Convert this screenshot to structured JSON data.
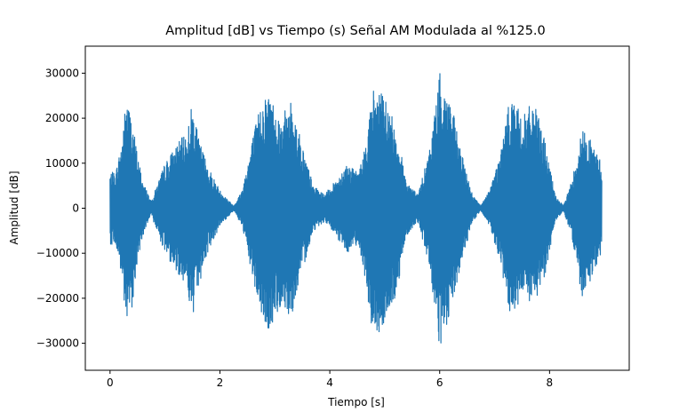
{
  "chart_data": {
    "type": "line",
    "title": "Amplitud [dB] vs Tiempo (s) Señal AM Modulada al  %125.0",
    "xlabel": "Tiempo [s]",
    "ylabel": "Amplitud [dB]",
    "xlim": [
      -0.45,
      9.45
    ],
    "ylim": [
      -36000,
      36000
    ],
    "x_ticks": [
      0,
      2,
      4,
      6,
      8
    ],
    "x_tick_labels": [
      "0",
      "2",
      "4",
      "6",
      "8"
    ],
    "y_ticks": [
      -30000,
      -20000,
      -10000,
      0,
      10000,
      20000,
      30000
    ],
    "y_tick_labels": [
      "−30000",
      "−20000",
      "−10000",
      "0",
      "10000",
      "20000",
      "30000"
    ],
    "grid": false,
    "legend": "none",
    "colors": {
      "series": "#1f77b4",
      "axes": "#000000",
      "background": "#ffffff"
    },
    "series": [
      {
        "style": "dense oscillating AM waveform filling its envelope",
        "x_range": [
          0,
          8.95
        ],
        "envelope_x": [
          0,
          0.1,
          0.2,
          0.3,
          0.4,
          0.5,
          0.6,
          0.75,
          0.85,
          1.0,
          1.2,
          1.4,
          1.5,
          1.6,
          1.8,
          2.0,
          2.25,
          2.4,
          2.6,
          2.75,
          2.9,
          3.1,
          3.3,
          3.5,
          3.7,
          3.9,
          4.1,
          4.3,
          4.5,
          4.6,
          4.8,
          5.0,
          5.2,
          5.4,
          5.6,
          5.8,
          6.0,
          6.2,
          6.4,
          6.6,
          6.75,
          6.9,
          7.1,
          7.3,
          7.5,
          7.7,
          7.9,
          8.1,
          8.25,
          8.4,
          8.6,
          8.8,
          8.95
        ],
        "envelope_upper": [
          8000,
          8000,
          14000,
          25000,
          20000,
          12000,
          6000,
          1500,
          5000,
          10000,
          14000,
          17000,
          24000,
          16000,
          9000,
          4000,
          500,
          4000,
          16000,
          24000,
          26000,
          20000,
          24000,
          14000,
          5000,
          3000,
          6000,
          10000,
          8000,
          11000,
          27000,
          25000,
          18000,
          6000,
          3000,
          12000,
          30000,
          24000,
          12000,
          3000,
          500,
          4000,
          12000,
          26000,
          20000,
          24000,
          16000,
          3000,
          500,
          6000,
          18000,
          14000,
          10000
        ],
        "envelope_lower": [
          -8000,
          -8000,
          -15000,
          -27000,
          -22000,
          -12000,
          -6000,
          -1500,
          -5000,
          -10000,
          -14000,
          -17000,
          -26000,
          -18000,
          -9000,
          -4000,
          -500,
          -4000,
          -16000,
          -24000,
          -28000,
          -22000,
          -24000,
          -14000,
          -5000,
          -3000,
          -6000,
          -10000,
          -8000,
          -12000,
          -30000,
          -26000,
          -20000,
          -6000,
          -3000,
          -12000,
          -32000,
          -24000,
          -12000,
          -3000,
          -500,
          -4000,
          -12000,
          -26000,
          -20000,
          -22000,
          -16000,
          -3000,
          -500,
          -6000,
          -21000,
          -14000,
          -10000
        ]
      }
    ]
  }
}
